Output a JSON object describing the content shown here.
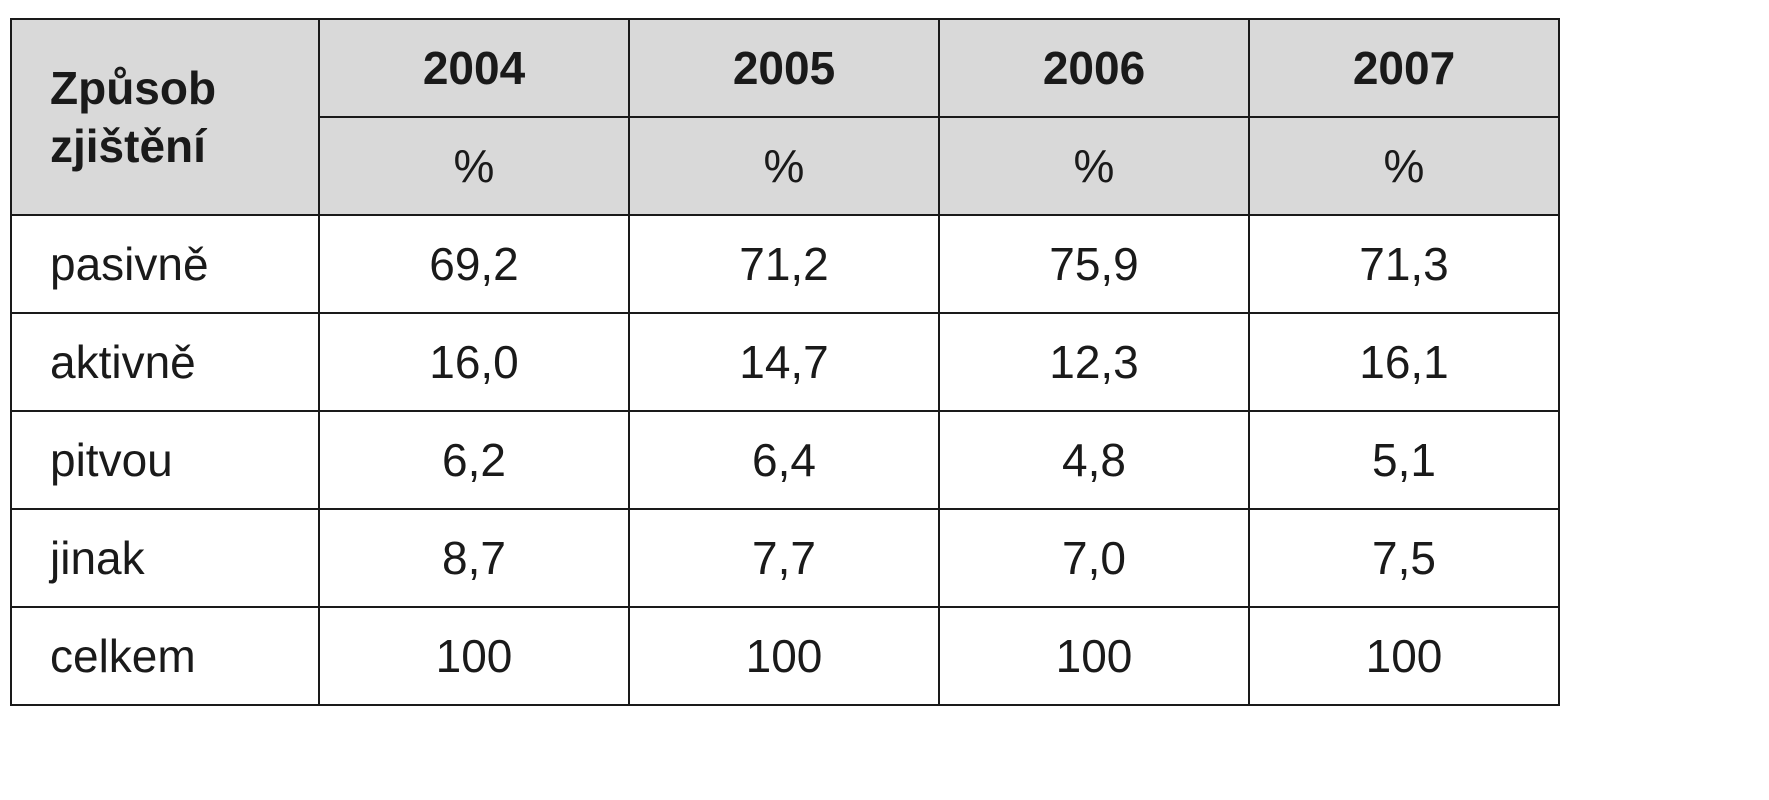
{
  "table": {
    "header": {
      "method_label": "Způsob zjištění",
      "years": [
        "2004",
        "2005",
        "2006",
        "2007"
      ],
      "unit": "%"
    },
    "rows": [
      {
        "label": "pasivně",
        "values": [
          "69,2",
          "71,2",
          "75,9",
          "71,3"
        ]
      },
      {
        "label": "aktivně",
        "values": [
          "16,0",
          "14,7",
          "12,3",
          "16,1"
        ]
      },
      {
        "label": "pitvou",
        "values": [
          "6,2",
          "6,4",
          "4,8",
          "5,1"
        ]
      },
      {
        "label": "jinak",
        "values": [
          "8,7",
          "7,7",
          "7,0",
          "7,5"
        ]
      },
      {
        "label": "celkem",
        "values": [
          "100",
          "100",
          "100",
          "100"
        ]
      }
    ]
  },
  "colors": {
    "header_background": "#d9d9d9",
    "border": "#1a1a1a",
    "text": "#1a1a1a"
  }
}
